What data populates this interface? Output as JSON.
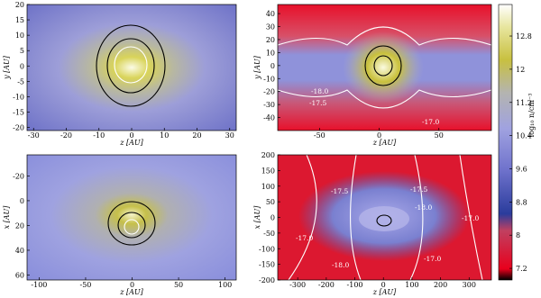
{
  "chart_data": [
    {
      "type": "image",
      "xlabel": "z [AU]",
      "ylabel": "y [AU]",
      "xlim": [
        -32,
        32
      ],
      "ylim": [
        -21,
        20
      ],
      "xticks": [
        -30,
        -20,
        -10,
        0,
        10,
        20,
        30
      ],
      "yticks": [
        -20,
        -15,
        -10,
        -5,
        0,
        5,
        10,
        15,
        20
      ],
      "annotations": []
    },
    {
      "type": "image",
      "xlabel": "z [AU]",
      "ylabel": "y [AU]",
      "xlim": [
        -85,
        94
      ],
      "ylim": [
        -50,
        47
      ],
      "xticks": [
        -50,
        0,
        50
      ],
      "yticks": [
        -40,
        -30,
        -20,
        -10,
        0,
        10,
        20,
        30,
        40
      ],
      "annotations": [
        "-18.0",
        "-17.5",
        "-17.0"
      ]
    },
    {
      "type": "image",
      "xlabel": "z [AU]",
      "ylabel": "x [AU]",
      "xlim": [
        -113,
        112
      ],
      "ylim": [
        64,
        -37
      ],
      "xticks": [
        -100,
        -50,
        0,
        50,
        100
      ],
      "yticks": [
        -20,
        0,
        20,
        40,
        60
      ],
      "annotations": []
    },
    {
      "type": "image",
      "xlabel": "z [AU]",
      "ylabel": "x [AU]",
      "xlim": [
        -370,
        378
      ],
      "ylim": [
        -200,
        200
      ],
      "xticks": [
        -300,
        -200,
        -100,
        0,
        100,
        200,
        300
      ],
      "yticks": [
        -200,
        -150,
        -100,
        -50,
        0,
        50,
        100,
        150,
        200
      ],
      "annotations": [
        "-17.5",
        "-17.5",
        "-18.0",
        "-17.0",
        "-18.0",
        "-17.0",
        "-17.0"
      ]
    },
    {
      "type": "colorbar",
      "label": "log₁₀ n/cm⁻³",
      "ylim": [
        6.92,
        13.56
      ],
      "yticks": [
        7.2,
        8.0,
        8.8,
        9.6,
        10.4,
        11.2,
        12.0,
        12.8
      ]
    }
  ]
}
